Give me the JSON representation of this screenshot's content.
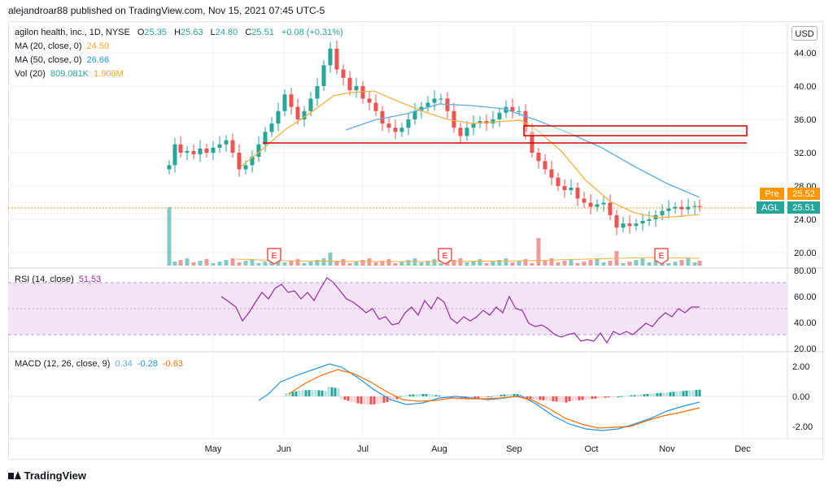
{
  "header": {
    "text": "alejandroar88 published on TradingView.com, Nov 15, 2021 07:45 UTC-5"
  },
  "legend": {
    "symbol": "agilon health, inc., 1D, NYSE",
    "o_label": "O",
    "o_val": "25.35",
    "h_label": "H",
    "h_val": "25.63",
    "l_label": "L",
    "l_val": "24.80",
    "c_label": "C",
    "c_val": "25.51",
    "change": "+0.08 (+0.31%)",
    "ma20_label": "MA (20, close, 0)",
    "ma20_val": "24.50",
    "ma50_label": "MA (50, close, 0)",
    "ma50_val": "26.66",
    "vol_label": "Vol (20)",
    "vol_val1": "809.081K",
    "vol_val2": "1.908M"
  },
  "rsi": {
    "label": "RSI (14, close)",
    "value": "51.53"
  },
  "macd": {
    "label": "MACD (12, 26, close, 9)",
    "v1": "0.34",
    "v2": "-0.28",
    "v3": "-0.63"
  },
  "currency_button": "USD",
  "price_axis": [
    "44.00",
    "40.00",
    "36.00",
    "32.00",
    "28.00",
    "24.00",
    "20.00"
  ],
  "rsi_axis": [
    "80.00",
    "60.00",
    "40.00",
    "20.00"
  ],
  "macd_axis": [
    "2.00",
    "0.00",
    "-2.00"
  ],
  "time_axis": [
    "May",
    "Jun",
    "Jul",
    "Aug",
    "Sep",
    "Oct",
    "Nov",
    "Dec"
  ],
  "tags": {
    "pre_label": "Pre",
    "pre_val": "25.52",
    "agl_label": "AGL",
    "agl_val": "25.51"
  },
  "earnings_marker": "E",
  "footer": "TradingView",
  "colors": {
    "up": "#26a69a",
    "down": "#ef5350",
    "ma20": "#f5b041",
    "ma50": "#5dade2",
    "rsi_line": "#9c27b0",
    "rsi_band": "#e1bee7",
    "macd_line": "#2196f3",
    "signal_line": "#ff6d00",
    "zone": "#d50000",
    "pre_tag": "#ff9800",
    "agl_tag": "#26a69a"
  },
  "chart_data": {
    "type": "candlestick",
    "price_range": [
      18.5,
      46
    ],
    "moving_averages": [
      "MA 20",
      "MA 50"
    ],
    "horizontal_zones": [
      {
        "type": "rectangle",
        "top": 35.3,
        "bottom": 34.0
      },
      {
        "type": "line",
        "value": 33.2
      }
    ],
    "rsi_range": [
      20,
      80
    ],
    "macd_range": [
      -2.8,
      2.8
    ]
  }
}
